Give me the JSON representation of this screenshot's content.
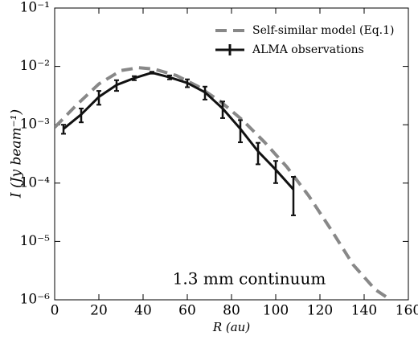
{
  "chart_data": {
    "type": "line",
    "ylabel": "I (Jy beam⁻¹)",
    "xlabel": "R (au)",
    "annotation": "1.3 mm continuum",
    "log_y": true,
    "legend": "upper right",
    "xlim": [
      0,
      160
    ],
    "xticks": [
      0,
      20,
      40,
      60,
      80,
      100,
      120,
      140,
      160
    ],
    "ylim": [
      1e-06,
      0.1
    ],
    "yticks": [
      {
        "value": 1e-06,
        "label": "10⁻⁶"
      },
      {
        "value": 1e-05,
        "label": "10⁻⁵"
      },
      {
        "value": 0.0001,
        "label": "10⁻⁴"
      },
      {
        "value": 0.001,
        "label": "10⁻³"
      },
      {
        "value": 0.01,
        "label": "10⁻²"
      },
      {
        "value": 0.1,
        "label": "10⁻¹"
      }
    ],
    "series": [
      {
        "name": "Self-similar model (Eq.1)",
        "color": "#888888",
        "style": "dashed",
        "x": [
          0,
          10,
          20,
          30,
          38,
          45,
          55,
          65,
          75,
          85,
          95,
          105,
          115,
          125,
          135,
          145,
          152
        ],
        "values": [
          0.0009,
          0.0022,
          0.005,
          0.0085,
          0.0095,
          0.009,
          0.007,
          0.0045,
          0.0025,
          0.0012,
          0.0005,
          0.00019,
          6e-05,
          1.6e-05,
          4e-06,
          1.5e-06,
          1e-06
        ]
      },
      {
        "name": "ALMA observations",
        "color": "#111111",
        "style": "solid",
        "x": [
          4,
          12,
          20,
          28,
          36,
          44,
          52,
          60,
          68,
          76,
          84,
          92,
          100,
          108
        ],
        "values": [
          0.00085,
          0.0015,
          0.003,
          0.0048,
          0.0063,
          0.0078,
          0.0065,
          0.0052,
          0.0036,
          0.0019,
          0.00085,
          0.00035,
          0.00017,
          7.8e-05
        ],
        "errors": [
          0.00015,
          0.0004,
          0.0008,
          0.001,
          0.0005,
          0.0003,
          0.0005,
          0.0008,
          0.0009,
          0.0006,
          0.00035,
          0.00014,
          7e-05,
          5e-05
        ]
      }
    ]
  }
}
